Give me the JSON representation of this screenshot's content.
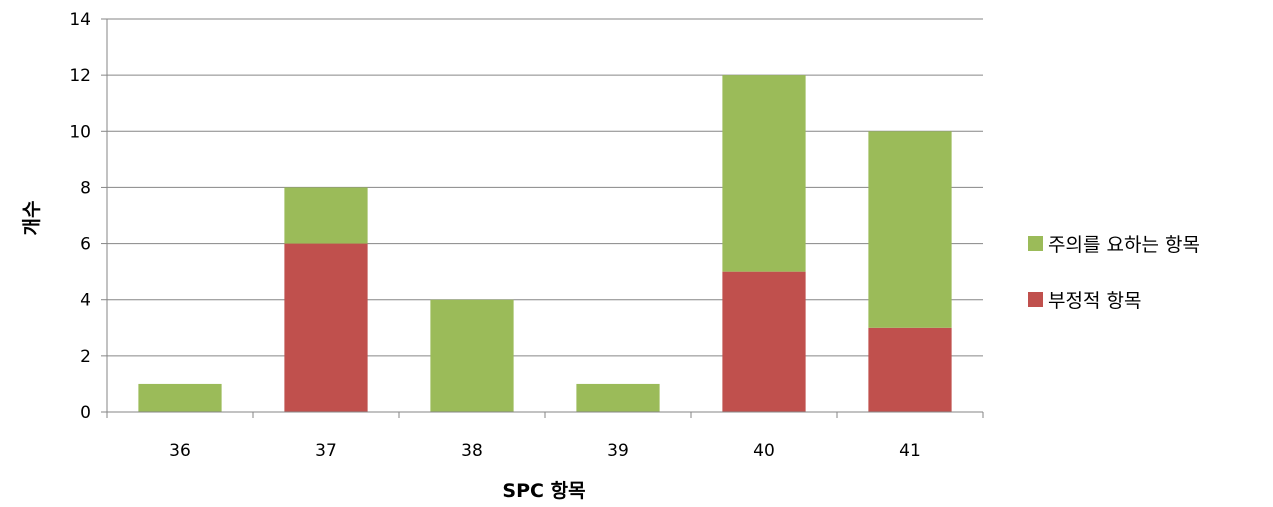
{
  "chart_data": {
    "type": "bar",
    "stacked": true,
    "categories": [
      "36",
      "37",
      "38",
      "39",
      "40",
      "41"
    ],
    "series": [
      {
        "name": "부정적 항목",
        "color": "#C0504D",
        "values": [
          0,
          6,
          0,
          0,
          5,
          3
        ]
      },
      {
        "name": "주의를 요하는 항목",
        "color": "#9BBB59",
        "values": [
          1,
          2,
          4,
          1,
          7,
          7
        ]
      }
    ],
    "title": "",
    "xlabel": "SPC 항목",
    "ylabel": "개수",
    "ylim": [
      0,
      14
    ],
    "yticks": [
      "0",
      "2",
      "4",
      "6",
      "8",
      "10",
      "12",
      "14"
    ],
    "grid": true,
    "legend_position": "right",
    "legend_order": [
      "주의를 요하는 항목",
      "부정적 항목"
    ]
  }
}
